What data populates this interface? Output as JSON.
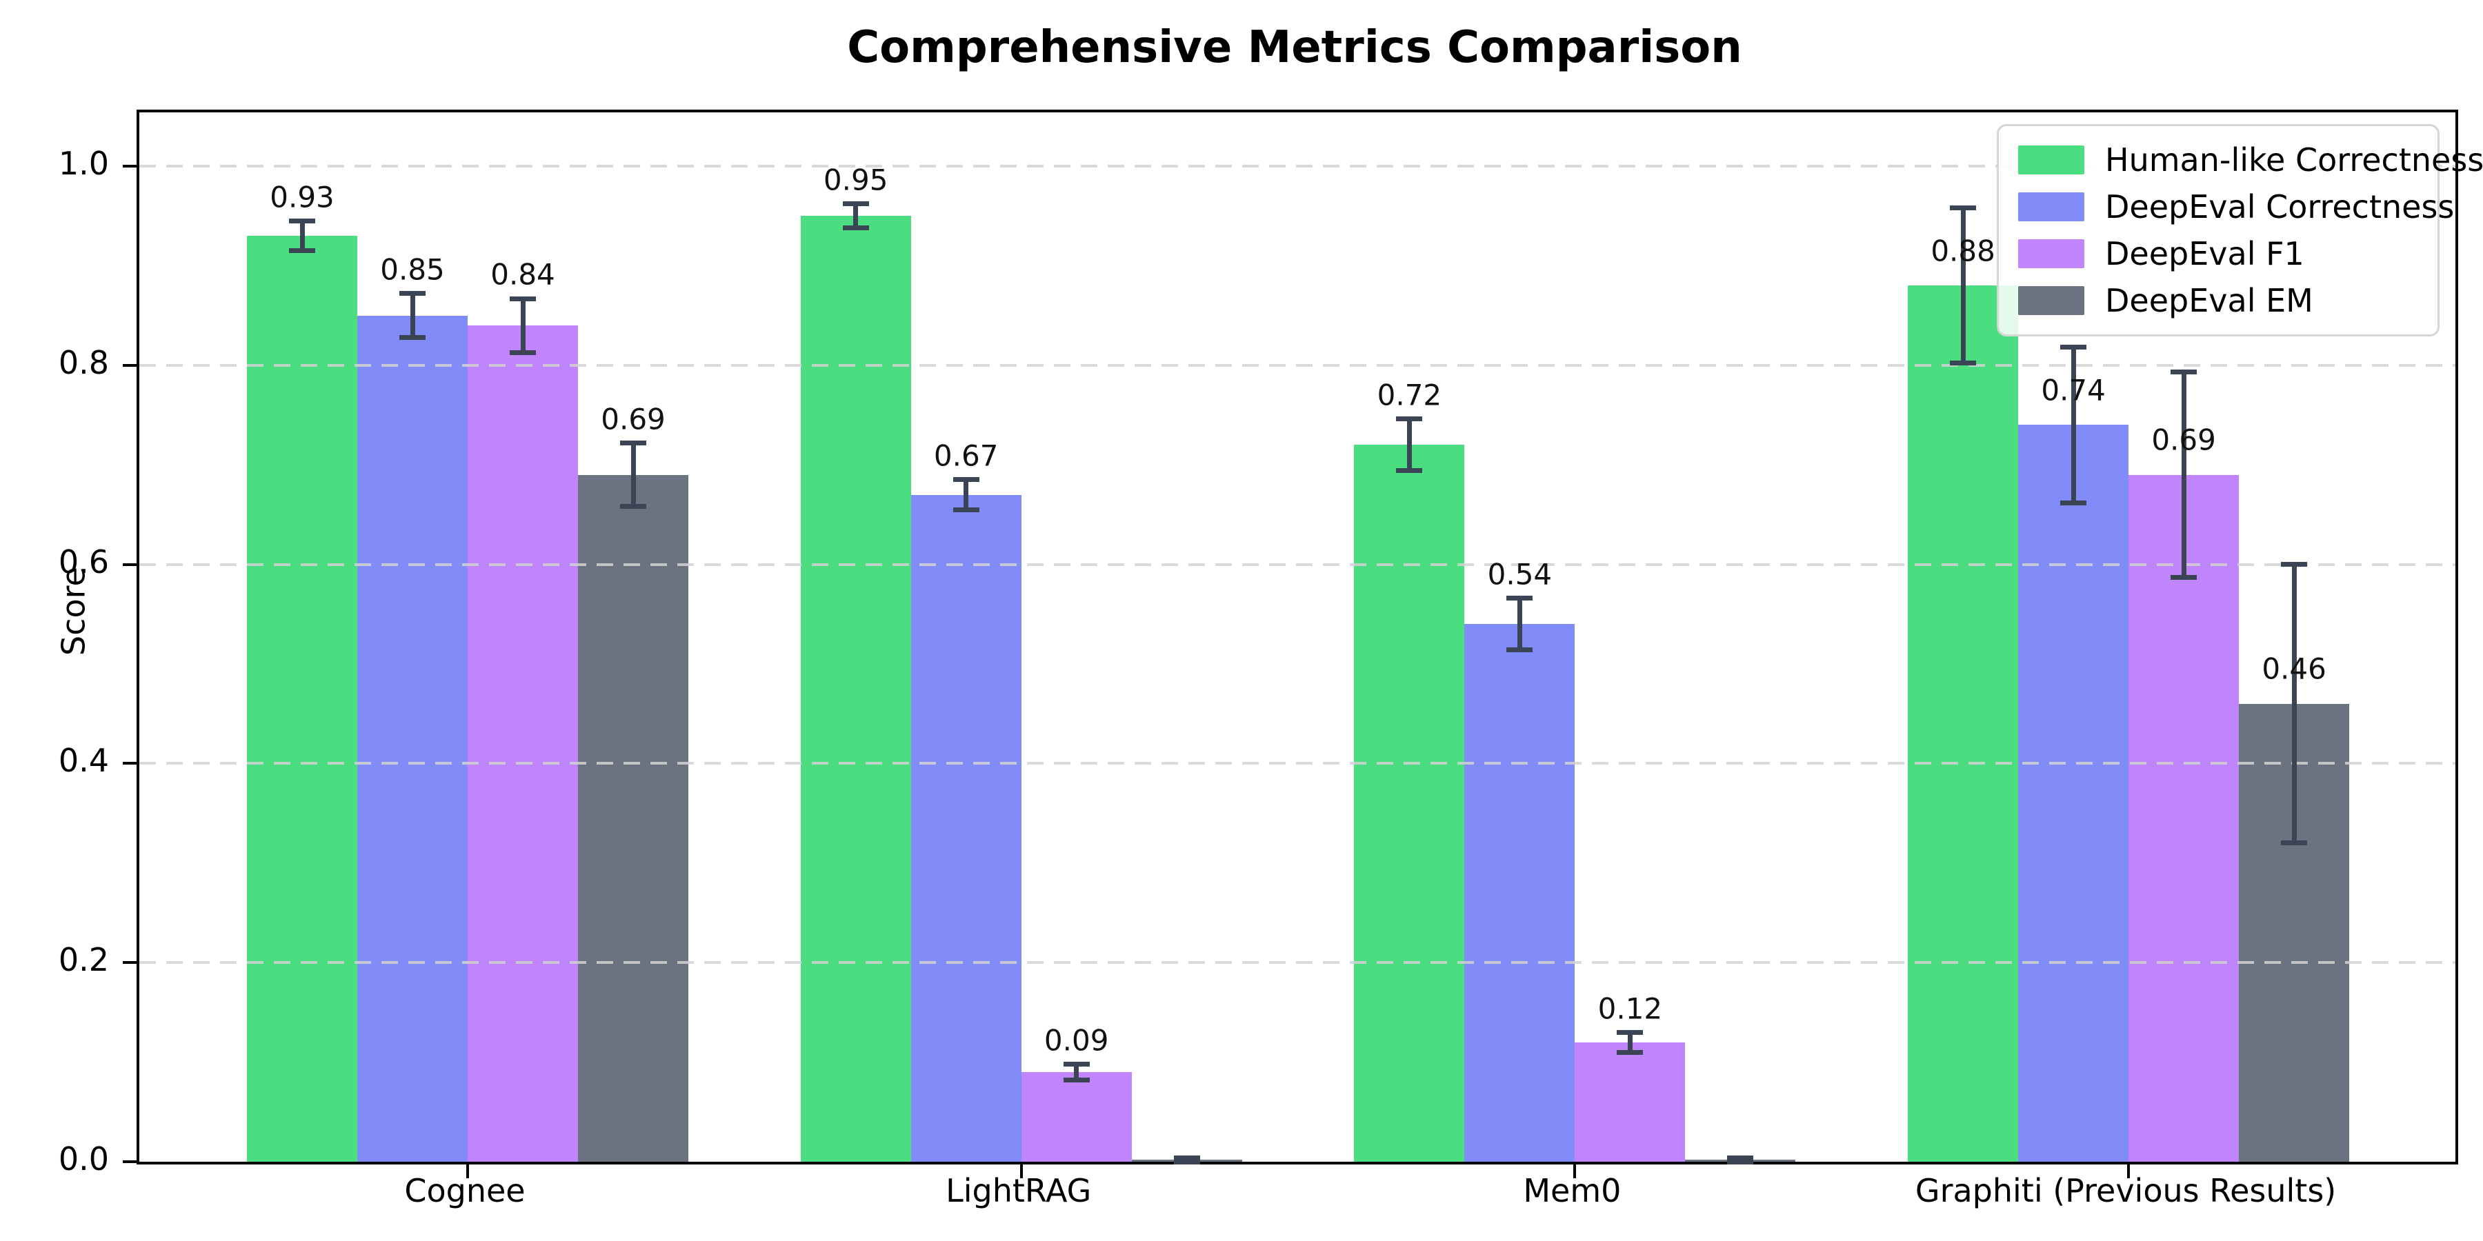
{
  "chart_data": {
    "type": "bar",
    "title": "Comprehensive Metrics Comparison",
    "xlabel": "",
    "ylabel": "Score",
    "categories": [
      "Cognee",
      "LightRAG",
      "Mem0",
      "Graphiti (Previous Results)"
    ],
    "series": [
      {
        "name": "Human-like Correctness",
        "color": "#4ade80",
        "values": [
          0.93,
          0.95,
          0.72,
          0.88
        ],
        "errors": [
          0.015,
          0.012,
          0.026,
          0.078
        ],
        "labels": [
          "0.93",
          "0.95",
          "0.72",
          "0.88"
        ]
      },
      {
        "name": "DeepEval Correctness",
        "color": "#818cf8",
        "values": [
          0.85,
          0.67,
          0.54,
          0.74
        ],
        "errors": [
          0.022,
          0.015,
          0.026,
          0.078
        ],
        "labels": [
          "0.85",
          "0.67",
          "0.54",
          "0.74"
        ]
      },
      {
        "name": "DeepEval F1",
        "color": "#c084fc",
        "values": [
          0.84,
          0.09,
          0.12,
          0.69
        ],
        "errors": [
          0.027,
          0.008,
          0.01,
          0.103
        ],
        "labels": [
          "0.84",
          "0.09",
          "0.12",
          "0.69"
        ]
      },
      {
        "name": "DeepEval EM",
        "color": "#6b7280",
        "values": [
          0.69,
          0.0,
          0.0,
          0.46
        ],
        "errors": [
          0.032,
          0.004,
          0.004,
          0.14
        ],
        "labels": [
          "0.69",
          "",
          "",
          "0.46"
        ]
      }
    ],
    "yticks": [
      "0.0",
      "0.2",
      "0.4",
      "0.6",
      "0.8",
      "1.0"
    ],
    "ylim": [
      0,
      1.054
    ],
    "grid": "horizontal dashed",
    "legend_position": "upper right",
    "error_bar_color": "#3a4454"
  }
}
